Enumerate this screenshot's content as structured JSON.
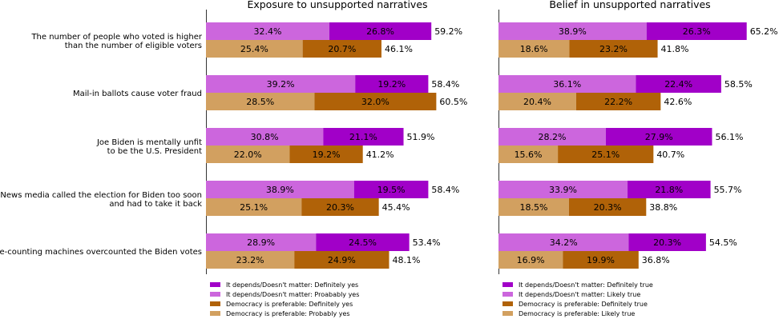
{
  "chart_data": [
    {
      "type": "bar",
      "title": "Exposure to unsupported narratives",
      "categories": [
        "The number of people who voted is higher\nthan the number of eligible voters",
        "Mail-in ballots cause voter fraud",
        "Joe Biden is mentally unfit\nto be the U.S. President",
        "News media called the election for Biden too soon\nand had to take it back",
        "Vote-counting machines overcounted the Biden votes"
      ],
      "groups": [
        {
          "series": [
            {
              "name": "It depends/Doesn't matter: Proabably yes",
              "color": "#cc66dd",
              "values": [
                32.4,
                39.2,
                30.8,
                38.9,
                28.9
              ],
              "labels": [
                "32.4%",
                "39.2%",
                "30.8%",
                "38.9%",
                "28.9%"
              ]
            },
            {
              "name": "It depends/Doesn't matter: Definitely yes",
              "color": "#a100c8",
              "values": [
                26.8,
                19.2,
                21.1,
                19.5,
                24.5
              ],
              "labels": [
                "26.8%",
                "19.2%",
                "21.1%",
                "19.5%",
                "24.5%"
              ]
            }
          ],
          "totals": [
            "59.2%",
            "58.4%",
            "51.9%",
            "58.4%",
            "53.4%"
          ]
        },
        {
          "series": [
            {
              "name": "Democracy is preferable: Probably yes",
              "color": "#d2a060",
              "values": [
                25.4,
                28.5,
                22.0,
                25.1,
                23.2
              ],
              "labels": [
                "25.4%",
                "28.5%",
                "22.0%",
                "25.1%",
                "23.2%"
              ]
            },
            {
              "name": "Democracy is preferable: Definitely yes",
              "color": "#b06208",
              "values": [
                20.7,
                32.0,
                19.2,
                20.3,
                24.9
              ],
              "labels": [
                "20.7%",
                "32.0%",
                "19.2%",
                "20.3%",
                "24.9%"
              ]
            }
          ],
          "totals": [
            "46.1%",
            "60.5%",
            "41.2%",
            "45.4%",
            "48.1%"
          ]
        }
      ],
      "legend": [
        {
          "label": "It depends/Doesn't matter: Definitely yes",
          "color": "#a100c8"
        },
        {
          "label": "It depends/Doesn't matter: Proabably yes",
          "color": "#cc66dd"
        },
        {
          "label": "Democracy is preferable: Definitely yes",
          "color": "#b06208"
        },
        {
          "label": "Democracy is preferable: Probably yes",
          "color": "#d2a060"
        }
      ]
    },
    {
      "type": "bar",
      "title": "Belief in unsupported narratives",
      "groups": [
        {
          "series": [
            {
              "name": "It depends/Doesn't matter: Likely true",
              "color": "#cc66dd",
              "values": [
                38.9,
                36.1,
                28.2,
                33.9,
                34.2
              ],
              "labels": [
                "38.9%",
                "36.1%",
                "28.2%",
                "33.9%",
                "34.2%"
              ]
            },
            {
              "name": "It depends/Doesn't matter: Definitely true",
              "color": "#a100c8",
              "values": [
                26.3,
                22.4,
                27.9,
                21.8,
                20.3
              ],
              "labels": [
                "26.3%",
                "22.4%",
                "27.9%",
                "21.8%",
                "20.3%"
              ]
            }
          ],
          "totals": [
            "65.2%",
            "58.5%",
            "56.1%",
            "55.7%",
            "54.5%"
          ]
        },
        {
          "series": [
            {
              "name": "Democracy is preferable: Likely true",
              "color": "#d2a060",
              "values": [
                18.6,
                20.4,
                15.6,
                18.5,
                16.9
              ],
              "labels": [
                "18.6%",
                "20.4%",
                "15.6%",
                "18.5%",
                "16.9%"
              ]
            },
            {
              "name": "Democracy is preferable: Definitely true",
              "color": "#b06208",
              "values": [
                23.2,
                22.2,
                25.1,
                20.3,
                19.9
              ],
              "labels": [
                "23.2%",
                "22.2%",
                "25.1%",
                "20.3%",
                "19.9%"
              ]
            }
          ],
          "totals": [
            "41.8%",
            "42.6%",
            "40.7%",
            "38.8%",
            "36.8%"
          ]
        }
      ],
      "legend": [
        {
          "label": "It depends/Doesn't matter: Definitely true",
          "color": "#a100c8"
        },
        {
          "label": "It depends/Doesn't matter: Likely true",
          "color": "#cc66dd"
        },
        {
          "label": "Democracy is preferable: Definitely true",
          "color": "#b06208"
        },
        {
          "label": "Democracy is preferable: Likely true",
          "color": "#d2a060"
        }
      ]
    }
  ]
}
